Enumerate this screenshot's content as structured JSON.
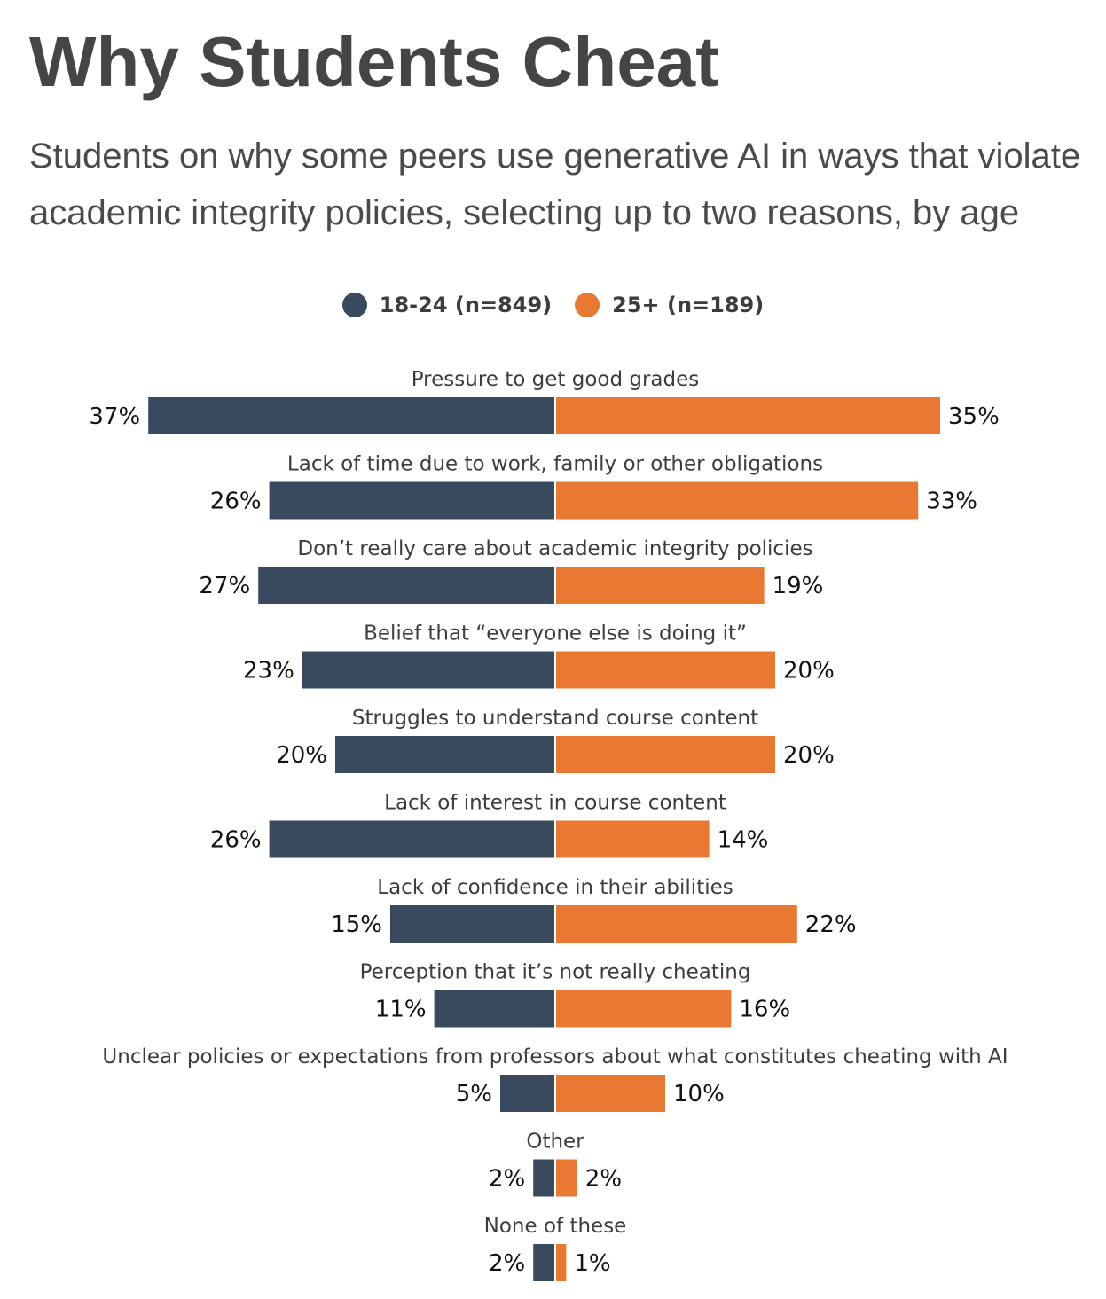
{
  "title": "Why Students Cheat",
  "subtitle": "Students on why some peers use generative AI in ways that violate academic integrity policies, selecting up to two reasons, by age",
  "colors": {
    "left": "#3a4a5e",
    "right": "#e87832",
    "category_text": "#3d3d3d",
    "value_text": "#111111"
  },
  "legend": [
    {
      "label": "18-24 (n=849)",
      "color": "#3a4a5e"
    },
    {
      "label": "25+ (n=189)",
      "color": "#e87832"
    }
  ],
  "chart_data": {
    "type": "bar",
    "orientation": "horizontal-diverging",
    "categories": [
      "Pressure to get good grades",
      "Lack of time due to work, family or other obligations",
      "Don’t really care about academic integrity policies",
      "Belief that “everyone else is doing it”",
      "Struggles to understand course content",
      "Lack of interest in course content",
      "Lack of confidence in their abilities",
      "Perception that it’s not really cheating",
      "Unclear policies or expectations from professors about what constitutes cheating with AI",
      "Other",
      "None of these"
    ],
    "series": [
      {
        "name": "18-24 (n=849)",
        "values": [
          37,
          26,
          27,
          23,
          20,
          26,
          15,
          11,
          5,
          2,
          2
        ]
      },
      {
        "name": "25+ (n=189)",
        "values": [
          35,
          33,
          19,
          20,
          20,
          14,
          22,
          16,
          10,
          2,
          1
        ]
      }
    ],
    "value_suffix": "%",
    "title": "Why Students Cheat",
    "legend_position": "top-center",
    "grid": false
  }
}
